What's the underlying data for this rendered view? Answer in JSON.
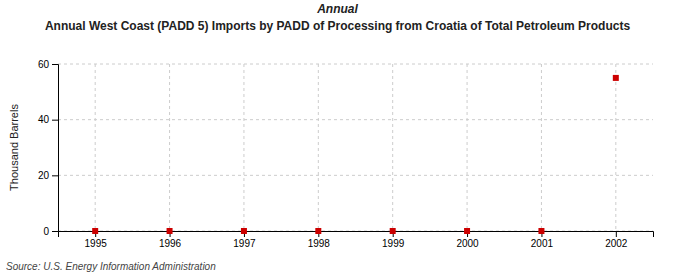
{
  "chart_data": {
    "type": "scatter",
    "subtitle": "Annual",
    "title": "Annual West Coast (PADD 5) Imports by PADD of Processing from Croatia of Total Petroleum Products",
    "y_label": "Thousand Barrels",
    "annotations": [
      "Source: U.S. Energy Information Administration"
    ],
    "x": [
      1995,
      1996,
      1997,
      1998,
      1999,
      2000,
      2001,
      2002
    ],
    "values": [
      0,
      0,
      0,
      0,
      0,
      0,
      0,
      55
    ],
    "color": "#cc0000",
    "marker": "square",
    "xlim": [
      1994.5,
      2002.5
    ],
    "ylim": [
      0,
      60
    ],
    "xticks": [
      1995,
      1996,
      1997,
      1998,
      1999,
      2000,
      2001,
      2002
    ],
    "yticks": [
      0,
      20,
      40,
      60
    ],
    "grid": true
  }
}
